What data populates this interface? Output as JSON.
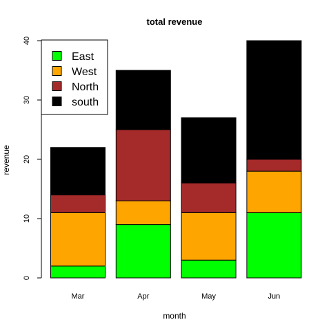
{
  "chart_data": {
    "type": "bar",
    "stacked": true,
    "title": "total revenue",
    "xlabel": "month",
    "ylabel": "revenue",
    "categories": [
      "Mar",
      "Apr",
      "May",
      "Jun"
    ],
    "ylim": [
      0,
      40
    ],
    "yticks": [
      0,
      10,
      20,
      30,
      40
    ],
    "series": [
      {
        "name": "East",
        "color": "#00ff00",
        "values": [
          2,
          9,
          3,
          11
        ]
      },
      {
        "name": "West",
        "color": "#ffa500",
        "values": [
          9,
          4,
          8,
          7
        ]
      },
      {
        "name": "North",
        "color": "#a52a2a",
        "values": [
          3,
          12,
          5,
          2
        ]
      },
      {
        "name": "south",
        "color": "#000000",
        "values": [
          8,
          10,
          11,
          20
        ]
      }
    ],
    "legend_position": "top-left",
    "grid": false
  }
}
